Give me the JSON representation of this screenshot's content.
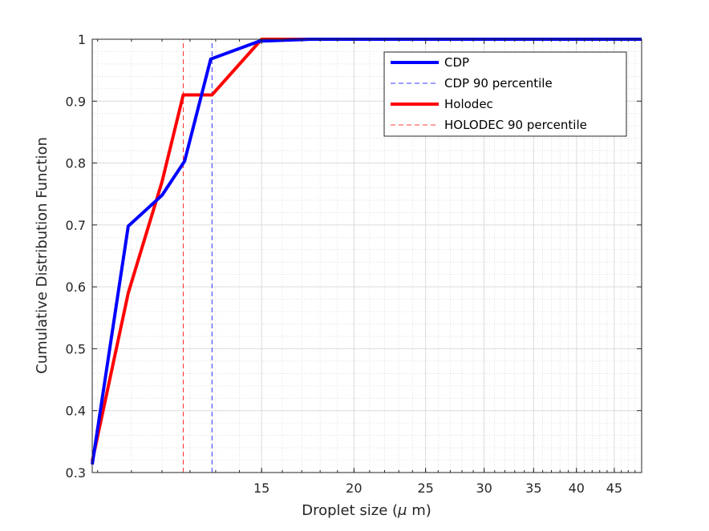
{
  "chart_data": {
    "type": "line",
    "xlabel": "Droplet size (",
    "xlabel_mu": "μ",
    "xlabel_tail": " m)",
    "ylabel": "Cumulative Distribution Function",
    "xscale": "log",
    "xlim": [
      8.85,
      49
    ],
    "ylim": [
      0.3,
      1.0
    ],
    "xticks": [
      15,
      20,
      25,
      30,
      35,
      40,
      45
    ],
    "xtick_labels": [
      "15",
      "20",
      "25",
      "30",
      "35",
      "40",
      "45"
    ],
    "yticks": [
      0.3,
      0.4,
      0.5,
      0.6,
      0.7,
      0.8,
      0.9,
      1.0
    ],
    "ytick_labels": [
      "0.3",
      "0.4",
      "0.5",
      "0.6",
      "0.7",
      "0.8",
      "0.9",
      "1"
    ],
    "grid": true,
    "minor_grid": true,
    "legend_position": "top-right",
    "series": [
      {
        "name": "CDP",
        "color": "#0000ff",
        "style": "solid",
        "x": [
          8.85,
          9.9,
          11.0,
          11.8,
          12.8,
          14.9,
          17.5,
          49
        ],
        "y": [
          0.313,
          0.698,
          0.748,
          0.803,
          0.968,
          0.997,
          1.0,
          1.0
        ]
      },
      {
        "name": "CDP 90 percentile",
        "color": "#0000ff",
        "style": "dashed",
        "x": [
          12.85,
          12.85
        ],
        "y": [
          0.3,
          1.0
        ]
      },
      {
        "name": "Holodec",
        "color": "#ff0000",
        "style": "solid",
        "x": [
          8.85,
          9.9,
          11.0,
          11.75,
          12.85,
          15.0,
          49
        ],
        "y": [
          0.318,
          0.59,
          0.77,
          0.91,
          0.91,
          1.0,
          1.0
        ]
      },
      {
        "name": "HOLODEC 90 percentile",
        "color": "#ff0000",
        "style": "dashed",
        "x": [
          11.75,
          11.75
        ],
        "y": [
          0.3,
          1.0
        ]
      }
    ]
  }
}
